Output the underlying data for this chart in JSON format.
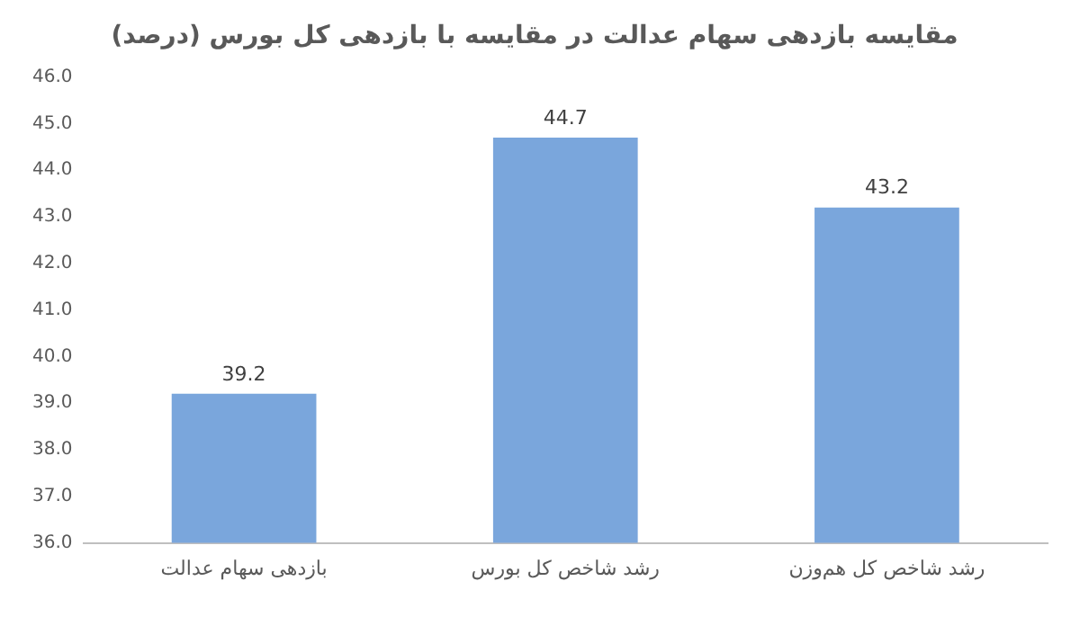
{
  "chart_data": {
    "type": "bar",
    "title": "مقایسه بازدهی سهام عدالت در مقایسه با بازدهی کل بورس (درصد)",
    "categories": [
      "بازدهی سهام عدالت",
      "رشد شاخص کل بورس",
      "رشد شاخص کل هم‌وزن"
    ],
    "values": [
      39.2,
      44.7,
      43.2
    ],
    "color": "#7aa6dc",
    "ylim": [
      36,
      46
    ],
    "yticks": [
      {
        "value": 36,
        "label": "36.0"
      },
      {
        "value": 37,
        "label": "37.0"
      },
      {
        "value": 38,
        "label": "38.0"
      },
      {
        "value": 39,
        "label": "39.0"
      },
      {
        "value": 40,
        "label": "40.0"
      },
      {
        "value": 41,
        "label": "41.0"
      },
      {
        "value": 42,
        "label": "42.0"
      },
      {
        "value": 43,
        "label": "43.0"
      },
      {
        "value": 44,
        "label": "44.0"
      },
      {
        "value": 45,
        "label": "45.0"
      },
      {
        "value": 46,
        "label": "46.0"
      }
    ],
    "grid": false,
    "data_labels": true
  }
}
